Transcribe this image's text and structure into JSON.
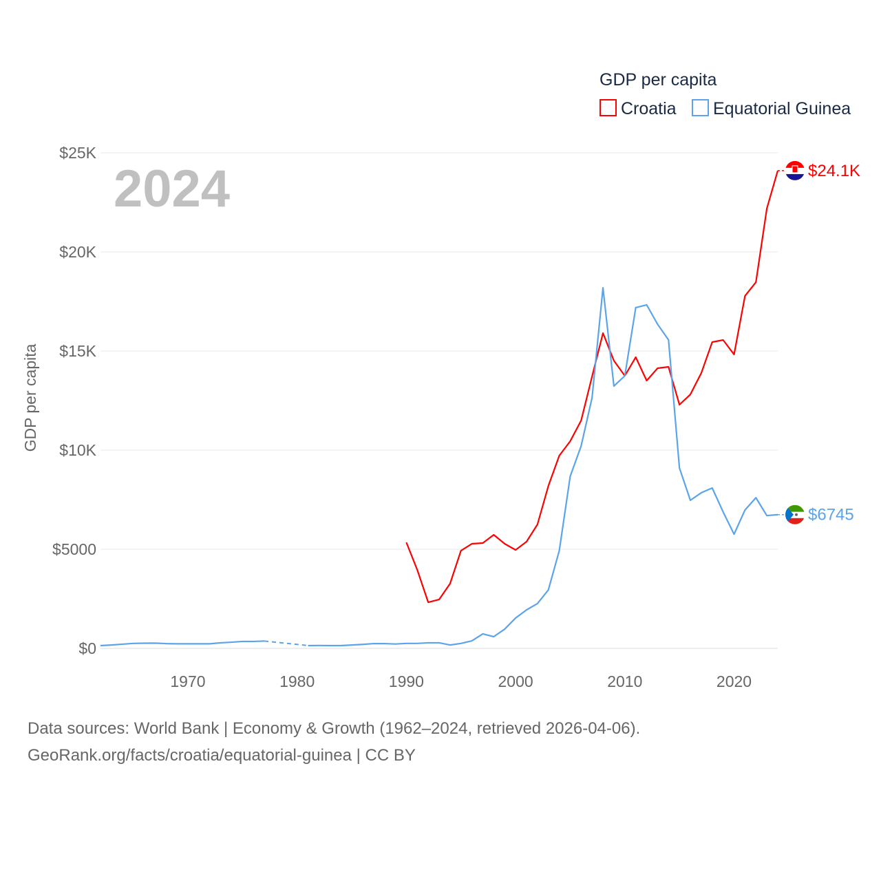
{
  "chart_data": {
    "type": "line",
    "legend_title": "GDP per capita",
    "legend_position": "top-right",
    "ylabel": "GDP per capita",
    "xlabel": "",
    "year_label": "2024",
    "xlim": [
      1962,
      2024
    ],
    "ylim": [
      0,
      25000
    ],
    "x_ticks": [
      1970,
      1980,
      1990,
      2000,
      2010,
      2020
    ],
    "y_ticks": [
      {
        "v": 0,
        "label": "$0"
      },
      {
        "v": 5000,
        "label": "$5000"
      },
      {
        "v": 10000,
        "label": "$10K"
      },
      {
        "v": 15000,
        "label": "$15K"
      },
      {
        "v": 20000,
        "label": "$20K"
      },
      {
        "v": 25000,
        "label": "$25K"
      }
    ],
    "grid": true,
    "series": [
      {
        "name": "Croatia",
        "color": "#ff0000",
        "end_label": "$24.1K",
        "flag": "croatia",
        "start": 1990,
        "values": [
          5347,
          3958,
          2326,
          2465,
          3264,
          4930,
          5278,
          5312,
          5729,
          5278,
          4965,
          5382,
          6250,
          8194,
          9722,
          10451,
          11493,
          13715,
          15903,
          14514,
          13750,
          14688,
          13507,
          14132,
          14201,
          12292,
          12812,
          13889,
          15451,
          15556,
          14826,
          17778,
          18472,
          22188,
          24100
        ]
      },
      {
        "name": "Equatorial Guinea",
        "color": "#5ba3ea",
        "end_label": "$6745",
        "flag": "equatorial-guinea",
        "start": 1962,
        "values": [
          139,
          170,
          210,
          250,
          260,
          265,
          240,
          230,
          230,
          230,
          230,
          280,
          310,
          350,
          350,
          370,
          null,
          null,
          null,
          140,
          145,
          140,
          140,
          170,
          200,
          240,
          240,
          220,
          250,
          250,
          280,
          280,
          170,
          250,
          380,
          730,
          590,
          970,
          1530,
          1940,
          2260,
          2950,
          4930,
          8680,
          10210,
          12640,
          18190,
          13230,
          13750,
          17190,
          17330,
          16350,
          15560,
          9100,
          7470,
          7850,
          8090,
          6880,
          5760,
          6980,
          7600,
          6700,
          6745
        ]
      }
    ]
  },
  "footer": {
    "line1": "Data sources: World Bank | Economy & Growth (1962–2024, retrieved 2026-04-06).",
    "line2": "GeoRank.org/facts/croatia/equatorial-guinea | CC BY"
  }
}
